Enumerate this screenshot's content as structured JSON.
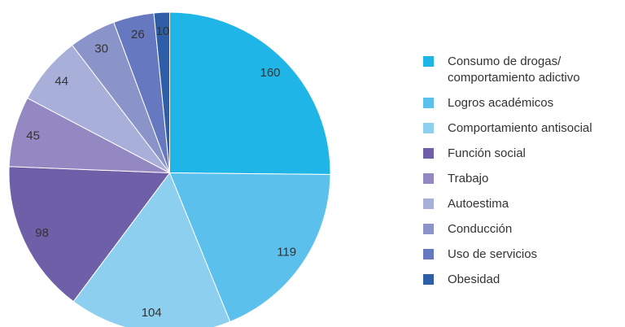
{
  "chart_data": {
    "type": "pie",
    "categories": [
      "Consumo de drogas/ comportamiento adictivo",
      "Logros académicos",
      "Comportamiento antisocial",
      "Función social",
      "Trabajo",
      "Autoestima",
      "Conducción",
      "Uso de servicios",
      "Obesidad"
    ],
    "values": [
      160,
      119,
      104,
      98,
      45,
      44,
      30,
      26,
      10
    ],
    "colors": [
      "#1fb5e6",
      "#5bc0eb",
      "#8dcfee",
      "#6e5fa8",
      "#9488c2",
      "#a8b0da",
      "#8a94c8",
      "#6678bf",
      "#2e5ea8"
    ],
    "legend": "right"
  }
}
